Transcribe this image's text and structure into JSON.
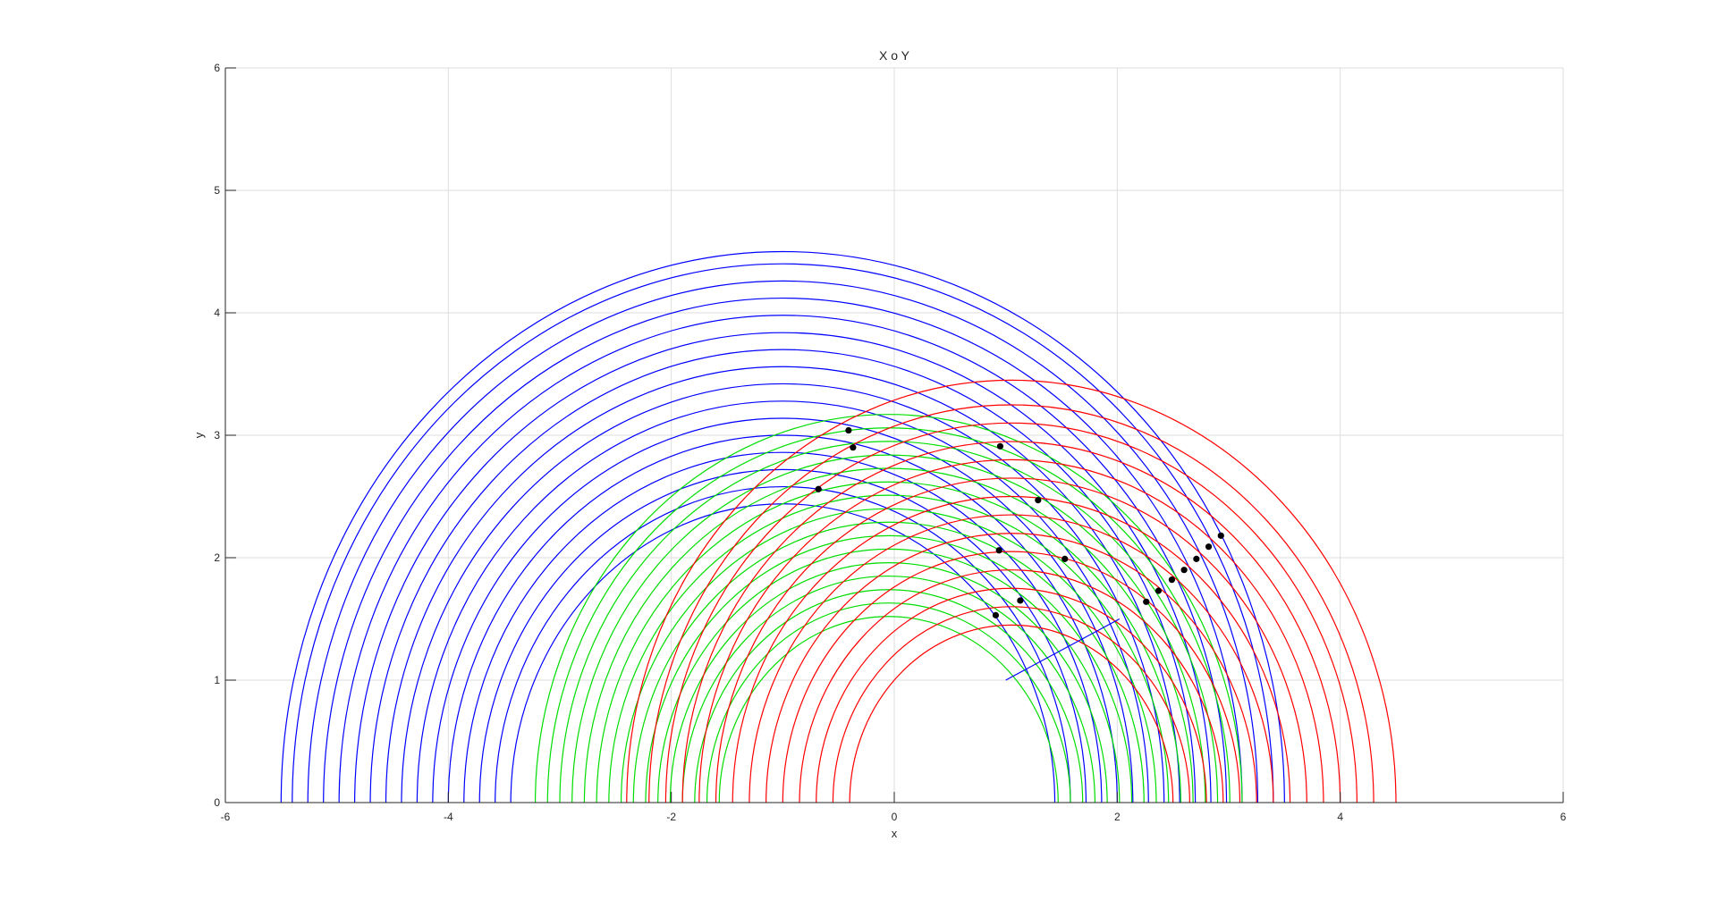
{
  "chart_data": {
    "type": "line",
    "title": "X o Y",
    "xlabel": "x",
    "ylabel": "y",
    "xlim": [
      -6,
      6
    ],
    "ylim": [
      0,
      6
    ],
    "grid": true,
    "x_ticks": [
      "-6",
      "-4",
      "-2",
      "0",
      "2",
      "4",
      "6"
    ],
    "y_ticks": [
      "0",
      "1",
      "2",
      "3",
      "4",
      "5",
      "6"
    ],
    "arc_families": [
      {
        "color": "#0000ff",
        "center": [
          -1,
          0
        ],
        "radii": [
          2.44,
          2.58,
          2.72,
          2.86,
          3.0,
          3.14,
          3.28,
          3.42,
          3.56,
          3.7,
          3.84,
          3.98,
          4.12,
          4.26,
          4.4,
          4.5
        ]
      },
      {
        "color": "#00dd00",
        "center": [
          -0.05,
          0
        ],
        "radii": [
          1.52,
          1.63,
          1.74,
          1.85,
          1.96,
          2.07,
          2.18,
          2.29,
          2.4,
          2.51,
          2.62,
          2.73,
          2.84,
          2.95,
          3.06,
          3.17
        ]
      },
      {
        "color": "#ff0000",
        "center": [
          1.05,
          0
        ],
        "radii": [
          1.45,
          1.6,
          1.75,
          1.9,
          2.05,
          2.2,
          2.35,
          2.5,
          2.65,
          2.8,
          2.95,
          3.1,
          3.25,
          3.45
        ]
      }
    ],
    "segment": {
      "color": "#0000ff",
      "x": [
        1.0,
        2.02
      ],
      "y": [
        1.0,
        1.5
      ]
    },
    "points": {
      "color": "#000000",
      "x": [
        -0.41,
        -0.37,
        -0.68,
        0.95,
        1.29,
        0.94,
        1.53,
        1.13,
        0.91,
        2.26,
        2.37,
        2.49,
        2.6,
        2.71,
        2.82,
        2.93
      ],
      "y": [
        3.04,
        2.9,
        2.56,
        2.91,
        2.47,
        2.06,
        1.99,
        1.65,
        1.53,
        1.64,
        1.73,
        1.82,
        1.9,
        1.99,
        2.09,
        2.18
      ]
    }
  }
}
